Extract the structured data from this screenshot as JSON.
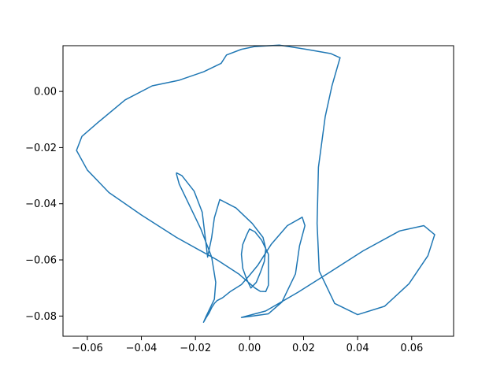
{
  "chart_data": {
    "type": "line",
    "title": "",
    "xlabel": "",
    "ylabel": "",
    "xlim": [
      -0.069,
      0.0755
    ],
    "ylim": [
      -0.0872,
      0.0163
    ],
    "grid": false,
    "legend": "none",
    "xticks": [
      -0.06,
      -0.04,
      -0.02,
      0.0,
      0.02,
      0.04,
      0.06
    ],
    "xtick_labels": [
      "−0.06",
      "−0.04",
      "−0.02",
      "0.00",
      "0.02",
      "0.04",
      "0.06"
    ],
    "yticks": [
      0.0,
      -0.02,
      -0.04,
      -0.06,
      -0.08
    ],
    "ytick_labels": [
      "0.00",
      "−0.02",
      "−0.04",
      "−0.06",
      "−0.08"
    ],
    "series": [
      {
        "color": "#1f77b4",
        "x": [
          0.0335,
          0.0305,
          0.028,
          0.0255,
          0.025,
          0.0258,
          0.0315,
          0.04,
          0.05,
          0.059,
          0.066,
          0.0685,
          0.0645,
          0.0555,
          0.042,
          0.03,
          0.018,
          0.006,
          -0.003,
          -0.003,
          0.001,
          0.007,
          0.012,
          0.017,
          0.0185,
          0.0205,
          0.0195,
          0.014,
          0.008,
          0.005,
          0.003,
          0.0,
          -0.003,
          -0.007,
          -0.01,
          -0.012,
          -0.013,
          -0.014,
          -0.015,
          -0.016,
          -0.017,
          -0.016,
          -0.013,
          -0.0125,
          -0.014,
          -0.018,
          -0.026,
          -0.027,
          -0.027,
          -0.025,
          -0.0205,
          -0.0175,
          -0.0165,
          -0.0155,
          -0.014,
          -0.013,
          -0.011,
          -0.005,
          0.001,
          0.005,
          0.006,
          0.0055,
          0.004,
          0.0025,
          0.0005,
          -0.001,
          -0.0025,
          -0.003,
          -0.0025,
          -0.001,
          0.0,
          0.002,
          0.0045,
          0.007,
          0.007,
          0.007,
          0.006,
          0.004,
          0.002,
          -0.004,
          -0.012,
          -0.027,
          -0.04,
          -0.052,
          -0.06,
          -0.064,
          -0.062,
          -0.056,
          -0.046,
          -0.036,
          -0.026,
          -0.017,
          -0.0105,
          -0.0085,
          -0.003,
          0.002,
          0.011,
          0.021,
          0.03,
          0.0335
        ],
        "y": [
          0.012,
          0.002,
          -0.009,
          -0.027,
          -0.047,
          -0.064,
          -0.0755,
          -0.0795,
          -0.0765,
          -0.0685,
          -0.0585,
          -0.051,
          -0.0478,
          -0.0497,
          -0.0568,
          -0.0642,
          -0.0715,
          -0.0782,
          -0.0805,
          -0.0805,
          -0.08,
          -0.0792,
          -0.075,
          -0.065,
          -0.055,
          -0.0478,
          -0.0448,
          -0.0478,
          -0.0545,
          -0.059,
          -0.062,
          -0.0655,
          -0.0688,
          -0.0712,
          -0.0735,
          -0.0745,
          -0.0755,
          -0.077,
          -0.079,
          -0.0805,
          -0.0822,
          -0.08,
          -0.074,
          -0.068,
          -0.059,
          -0.049,
          -0.033,
          -0.0295,
          -0.029,
          -0.03,
          -0.0355,
          -0.043,
          -0.051,
          -0.059,
          -0.052,
          -0.045,
          -0.0385,
          -0.0415,
          -0.047,
          -0.052,
          -0.056,
          -0.0605,
          -0.0645,
          -0.068,
          -0.07,
          -0.067,
          -0.063,
          -0.058,
          -0.0545,
          -0.051,
          -0.049,
          -0.05,
          -0.053,
          -0.058,
          -0.064,
          -0.069,
          -0.0713,
          -0.0712,
          -0.07,
          -0.065,
          -0.06,
          -0.052,
          -0.044,
          -0.036,
          -0.028,
          -0.021,
          -0.016,
          -0.011,
          -0.003,
          0.002,
          0.004,
          0.007,
          0.01,
          0.013,
          0.015,
          0.016,
          0.0165,
          0.015,
          0.0135,
          0.012
        ]
      }
    ]
  }
}
